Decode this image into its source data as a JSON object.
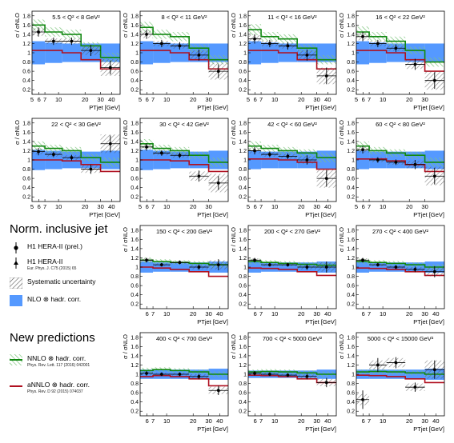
{
  "colors": {
    "nnlo_fill": "#7cc47c",
    "nnlo_line": "#118811",
    "annlo_line": "#b01020",
    "nlo_fill": "#5599ff",
    "syst_hatch": "#555555",
    "data": "#000000"
  },
  "axis_labels": {
    "ylabel": "σ / σNLO",
    "xlabel": "PTjet [GeV]"
  },
  "legend": {
    "title": "Norm. inclusive jet",
    "h1_prel": "H1 HERA-II (prel.)",
    "h1": "H1 HERA-II",
    "h1_ref": "Eur. Phys. J. C75 (2015) 65",
    "syst": "Systematic uncertainty",
    "nlo": "NLO ⊗ hadr. corr.",
    "new_title": "New predictions",
    "nnlo": "NNLO ⊗ hadr. corr.",
    "nnlo_ref": "Phys. Rev. Lett. 117 (2016) 042001",
    "annlo": "aNNLO ⊗ hadr. corr.",
    "annlo_ref": "Phys. Rev. D 92 (2015) 074037"
  },
  "chart_data": [
    {
      "type": "line",
      "title": "5.5 < Q² < 8 GeV²",
      "xedges": [
        5,
        7,
        11,
        18,
        30,
        50
      ],
      "ylim": [
        0.1,
        1.9
      ],
      "yticks": [
        0.2,
        0.4,
        0.6,
        0.8,
        1,
        1.2,
        1.4,
        1.6,
        1.8
      ],
      "xticks": [
        "5",
        "6",
        "7",
        "10",
        "20",
        "30",
        "40"
      ],
      "data": [
        1.45,
        1.25,
        1.25,
        1.05,
        0.68
      ],
      "err": [
        0.1,
        0.08,
        0.08,
        0.12,
        0.15
      ],
      "nnlo": [
        1.6,
        1.45,
        1.4,
        1.15,
        0.9
      ],
      "nnlo_unc": [
        0.12,
        0.1,
        0.1,
        0.08,
        0.1
      ],
      "annlo": [
        1.05,
        1.05,
        1.0,
        0.85,
        0.65
      ],
      "nlo_unc": [
        0.25,
        0.22,
        0.2,
        0.2,
        0.2
      ],
      "syst": [
        0.08,
        0.06,
        0.06,
        0.1,
        0.18
      ]
    },
    {
      "type": "line",
      "title": "8 < Q² < 11 GeV²",
      "xedges": [
        5,
        7,
        11,
        18,
        30,
        50
      ],
      "ylim": [
        0.1,
        1.9
      ],
      "yticks": [
        0.2,
        0.4,
        0.6,
        0.8,
        1,
        1.2,
        1.4,
        1.6,
        1.8
      ],
      "xticks": [
        "5",
        "6",
        "7",
        "10",
        "20",
        "30"
      ],
      "data": [
        1.4,
        1.2,
        1.15,
        0.95,
        0.6
      ],
      "err": [
        0.1,
        0.08,
        0.08,
        0.12,
        0.15
      ],
      "nnlo": [
        1.55,
        1.4,
        1.35,
        1.1,
        0.85
      ],
      "nnlo_unc": [
        0.12,
        0.1,
        0.1,
        0.08,
        0.1
      ],
      "annlo": [
        1.05,
        1.05,
        1.0,
        0.85,
        0.65
      ],
      "nlo_unc": [
        0.25,
        0.22,
        0.2,
        0.2,
        0.2
      ],
      "syst": [
        0.08,
        0.06,
        0.06,
        0.1,
        0.18
      ]
    },
    {
      "type": "line",
      "title": "11 < Q² < 16 GeV²",
      "xedges": [
        5,
        7,
        11,
        18,
        30,
        50
      ],
      "ylim": [
        0.1,
        1.9
      ],
      "yticks": [
        0.2,
        0.4,
        0.6,
        0.8,
        1,
        1.2,
        1.4,
        1.6,
        1.8
      ],
      "xticks": [
        "5",
        "6",
        "7",
        "10",
        "20",
        "30",
        "40"
      ],
      "data": [
        1.3,
        1.2,
        1.15,
        0.95,
        0.5
      ],
      "err": [
        0.1,
        0.08,
        0.08,
        0.12,
        0.18
      ],
      "nnlo": [
        1.5,
        1.35,
        1.3,
        1.1,
        0.85
      ],
      "nnlo_unc": [
        0.12,
        0.1,
        0.1,
        0.08,
        0.1
      ],
      "annlo": [
        1.05,
        1.05,
        1.0,
        0.85,
        0.65
      ],
      "nlo_unc": [
        0.25,
        0.22,
        0.2,
        0.2,
        0.2
      ],
      "syst": [
        0.08,
        0.06,
        0.06,
        0.1,
        0.18
      ]
    },
    {
      "type": "line",
      "title": "16 < Q² < 22 GeV²",
      "xedges": [
        5,
        7,
        11,
        18,
        30,
        50
      ],
      "ylim": [
        0.1,
        1.9
      ],
      "yticks": [
        0.2,
        0.4,
        0.6,
        0.8,
        1,
        1.2,
        1.4,
        1.6,
        1.8
      ],
      "xticks": [
        "5",
        "6",
        "7",
        "10",
        "20",
        "30"
      ],
      "data": [
        1.35,
        1.2,
        1.1,
        0.75,
        0.4
      ],
      "err": [
        0.1,
        0.08,
        0.08,
        0.12,
        0.18
      ],
      "nnlo": [
        1.45,
        1.35,
        1.25,
        1.05,
        0.8
      ],
      "nnlo_unc": [
        0.12,
        0.1,
        0.1,
        0.08,
        0.1
      ],
      "annlo": [
        1.05,
        1.05,
        1.0,
        0.85,
        0.6
      ],
      "nlo_unc": [
        0.25,
        0.22,
        0.2,
        0.2,
        0.2
      ],
      "syst": [
        0.08,
        0.06,
        0.06,
        0.1,
        0.2
      ]
    },
    {
      "type": "line",
      "title": "22 < Q² < 30 GeV²",
      "xedges": [
        5,
        7,
        11,
        18,
        30,
        50
      ],
      "ylim": [
        0.1,
        1.9
      ],
      "yticks": [
        0.2,
        0.4,
        0.6,
        0.8,
        1,
        1.2,
        1.4,
        1.6,
        1.8
      ],
      "xticks": [
        "5",
        "6",
        "7",
        "10",
        "20",
        "30",
        "40"
      ],
      "data": [
        1.18,
        1.12,
        1.05,
        0.8,
        1.35
      ],
      "err": [
        0.08,
        0.06,
        0.06,
        0.1,
        0.18
      ],
      "nnlo": [
        1.3,
        1.25,
        1.2,
        1.05,
        0.95
      ],
      "nnlo_unc": [
        0.1,
        0.08,
        0.08,
        0.08,
        0.1
      ],
      "annlo": [
        1.0,
        1.0,
        0.98,
        0.9,
        0.75
      ],
      "nlo_unc": [
        0.22,
        0.2,
        0.18,
        0.18,
        0.2
      ],
      "syst": [
        0.06,
        0.05,
        0.05,
        0.08,
        0.2
      ]
    },
    {
      "type": "line",
      "title": "30 < Q² < 42 GeV²",
      "xedges": [
        5,
        7,
        11,
        18,
        30,
        50
      ],
      "ylim": [
        0.1,
        1.9
      ],
      "yticks": [
        0.2,
        0.4,
        0.6,
        0.8,
        1,
        1.2,
        1.4,
        1.6,
        1.8
      ],
      "xticks": [
        "5",
        "6",
        "7",
        "10",
        "20",
        "30"
      ],
      "data": [
        1.28,
        1.15,
        1.1,
        0.65,
        0.5
      ],
      "err": [
        0.08,
        0.06,
        0.06,
        0.12,
        0.15
      ],
      "nnlo": [
        1.35,
        1.25,
        1.2,
        1.1,
        0.95
      ],
      "nnlo_unc": [
        0.1,
        0.08,
        0.08,
        0.08,
        0.1
      ],
      "annlo": [
        1.0,
        1.0,
        0.98,
        0.9,
        0.75
      ],
      "nlo_unc": [
        0.22,
        0.2,
        0.18,
        0.18,
        0.2
      ],
      "syst": [
        0.06,
        0.05,
        0.05,
        0.1,
        0.2
      ]
    },
    {
      "type": "line",
      "title": "42 < Q² < 60 GeV²",
      "xedges": [
        5,
        7,
        11,
        18,
        30,
        50
      ],
      "ylim": [
        0.1,
        1.9
      ],
      "yticks": [
        0.2,
        0.4,
        0.6,
        0.8,
        1,
        1.2,
        1.4,
        1.6,
        1.8
      ],
      "xticks": [
        "5",
        "6",
        "7",
        "10",
        "20",
        "30",
        "40"
      ],
      "data": [
        1.2,
        1.12,
        1.08,
        1.0,
        0.6
      ],
      "err": [
        0.08,
        0.06,
        0.06,
        0.1,
        0.18
      ],
      "nnlo": [
        1.3,
        1.25,
        1.2,
        1.15,
        1.05
      ],
      "nnlo_unc": [
        0.1,
        0.08,
        0.08,
        0.08,
        0.1
      ],
      "annlo": [
        1.02,
        1.02,
        1.0,
        0.95,
        0.8
      ],
      "nlo_unc": [
        0.2,
        0.18,
        0.18,
        0.18,
        0.2
      ],
      "syst": [
        0.06,
        0.05,
        0.05,
        0.08,
        0.2
      ]
    },
    {
      "type": "line",
      "title": "60 < Q² < 80 GeV²",
      "xedges": [
        5,
        7,
        11,
        18,
        30,
        50
      ],
      "ylim": [
        0.1,
        1.9
      ],
      "yticks": [
        0.2,
        0.4,
        0.6,
        0.8,
        1,
        1.2,
        1.4,
        1.6,
        1.8
      ],
      "xticks": [
        "5",
        "6",
        "7",
        "10",
        "20",
        "30"
      ],
      "data": [
        1.22,
        1.0,
        0.95,
        0.9,
        0.65
      ],
      "err": [
        0.08,
        0.06,
        0.06,
        0.1,
        0.18
      ],
      "nnlo": [
        1.3,
        1.2,
        1.15,
        1.1,
        0.95
      ],
      "nnlo_unc": [
        0.1,
        0.08,
        0.08,
        0.08,
        0.1
      ],
      "annlo": [
        1.02,
        1.02,
        0.98,
        0.9,
        0.75
      ],
      "nlo_unc": [
        0.2,
        0.18,
        0.18,
        0.18,
        0.2
      ],
      "syst": [
        0.06,
        0.05,
        0.05,
        0.08,
        0.2
      ]
    },
    {
      "type": "line",
      "title": "150 < Q² < 200 GeV²",
      "xedges": [
        5,
        7,
        11,
        18,
        30,
        50
      ],
      "ylim": [
        0.1,
        1.9
      ],
      "yticks": [
        0.2,
        0.4,
        0.6,
        0.8,
        1,
        1.2,
        1.4,
        1.6,
        1.8
      ],
      "xticks": [
        "6",
        "7",
        "10",
        "20",
        "30",
        "40"
      ],
      "data": [
        1.15,
        1.05,
        1.1,
        1.0,
        1.05
      ],
      "err": [
        0.05,
        0.04,
        0.04,
        0.06,
        0.12
      ],
      "nnlo": [
        1.15,
        1.12,
        1.1,
        1.08,
        1.05
      ],
      "nnlo_unc": [
        0.06,
        0.05,
        0.05,
        0.05,
        0.06
      ],
      "annlo": [
        1.0,
        0.98,
        0.95,
        0.9,
        0.8
      ],
      "nlo_unc": [
        0.12,
        0.1,
        0.1,
        0.1,
        0.12
      ],
      "syst": [
        0.04,
        0.03,
        0.03,
        0.05,
        0.1
      ]
    },
    {
      "type": "line",
      "title": "200 < Q² < 270 GeV²",
      "xedges": [
        5,
        7,
        11,
        18,
        30,
        50
      ],
      "ylim": [
        0.1,
        1.9
      ],
      "yticks": [
        0.2,
        0.4,
        0.6,
        0.8,
        1,
        1.2,
        1.4,
        1.6,
        1.8
      ],
      "xticks": [
        "6",
        "7",
        "10",
        "20",
        "30",
        "40"
      ],
      "data": [
        1.15,
        1.05,
        1.05,
        1.0,
        1.0
      ],
      "err": [
        0.05,
        0.04,
        0.04,
        0.06,
        0.12
      ],
      "nnlo": [
        1.12,
        1.1,
        1.08,
        1.06,
        1.04
      ],
      "nnlo_unc": [
        0.06,
        0.05,
        0.05,
        0.05,
        0.06
      ],
      "annlo": [
        0.98,
        0.97,
        0.95,
        0.9,
        0.82
      ],
      "nlo_unc": [
        0.12,
        0.1,
        0.1,
        0.1,
        0.12
      ],
      "syst": [
        0.04,
        0.03,
        0.03,
        0.05,
        0.1
      ]
    },
    {
      "type": "line",
      "title": "270 < Q² < 400 GeV²",
      "xedges": [
        5,
        7,
        11,
        18,
        30,
        50
      ],
      "ylim": [
        0.1,
        1.9
      ],
      "yticks": [
        0.2,
        0.4,
        0.6,
        0.8,
        1,
        1.2,
        1.4,
        1.6,
        1.8
      ],
      "xticks": [
        "6",
        "7",
        "10",
        "20",
        "30",
        "40"
      ],
      "data": [
        1.15,
        1.05,
        1.0,
        0.95,
        0.9
      ],
      "err": [
        0.05,
        0.04,
        0.04,
        0.06,
        0.12
      ],
      "nnlo": [
        1.12,
        1.1,
        1.08,
        1.05,
        1.0
      ],
      "nnlo_unc": [
        0.06,
        0.05,
        0.05,
        0.05,
        0.06
      ],
      "annlo": [
        0.98,
        0.97,
        0.95,
        0.9,
        0.82
      ],
      "nlo_unc": [
        0.12,
        0.1,
        0.1,
        0.1,
        0.12
      ],
      "syst": [
        0.04,
        0.03,
        0.03,
        0.05,
        0.1
      ]
    },
    {
      "type": "line",
      "title": "400 < Q² < 700 GeV²",
      "xedges": [
        5,
        7,
        11,
        18,
        30,
        50
      ],
      "ylim": [
        0.1,
        1.9
      ],
      "yticks": [
        0.2,
        0.4,
        0.6,
        0.8,
        1,
        1.2,
        1.4,
        1.6,
        1.8
      ],
      "xticks": [
        "6",
        "7",
        "10",
        "20",
        "30",
        "40"
      ],
      "data": [
        1.02,
        1.0,
        1.0,
        0.95,
        0.65
      ],
      "err": [
        0.05,
        0.04,
        0.04,
        0.06,
        0.1
      ],
      "nnlo": [
        1.08,
        1.1,
        1.08,
        1.05,
        1.0
      ],
      "nnlo_unc": [
        0.06,
        0.05,
        0.05,
        0.05,
        0.06
      ],
      "annlo": [
        0.95,
        0.97,
        0.95,
        0.9,
        0.75
      ],
      "nlo_unc": [
        0.1,
        0.1,
        0.1,
        0.1,
        0.12
      ],
      "syst": [
        0.04,
        0.03,
        0.03,
        0.05,
        0.08
      ]
    },
    {
      "type": "line",
      "title": "700 < Q² < 5000 GeV²",
      "xedges": [
        5,
        7,
        11,
        18,
        30,
        50
      ],
      "ylim": [
        0.1,
        1.9
      ],
      "yticks": [
        0.2,
        0.4,
        0.6,
        0.8,
        1,
        1.2,
        1.4,
        1.6,
        1.8
      ],
      "xticks": [
        "6",
        "7",
        "10",
        "20",
        "30",
        "40"
      ],
      "data": [
        1.02,
        1.0,
        0.98,
        0.95,
        0.82
      ],
      "err": [
        0.05,
        0.04,
        0.04,
        0.06,
        0.1
      ],
      "nnlo": [
        1.05,
        1.06,
        1.05,
        1.03,
        1.0
      ],
      "nnlo_unc": [
        0.05,
        0.05,
        0.05,
        0.05,
        0.06
      ],
      "annlo": [
        0.98,
        0.97,
        0.95,
        0.9,
        0.82
      ],
      "nlo_unc": [
        0.08,
        0.08,
        0.08,
        0.08,
        0.1
      ],
      "syst": [
        0.03,
        0.03,
        0.03,
        0.04,
        0.08
      ]
    },
    {
      "type": "line",
      "title": "5000 < Q² < 15000 GeV²",
      "xedges": [
        5,
        7,
        11,
        18,
        30,
        50
      ],
      "ylim": [
        0.1,
        1.9
      ],
      "yticks": [
        0.2,
        0.4,
        0.6,
        0.8,
        1,
        1.2,
        1.4,
        1.6,
        1.8
      ],
      "xticks": [
        "6",
        "7",
        "10",
        "20",
        "30",
        "40"
      ],
      "data": [
        0.45,
        1.2,
        1.25,
        0.72,
        1.1
      ],
      "err": [
        0.2,
        0.15,
        0.12,
        0.1,
        0.2
      ],
      "nnlo": [
        1.05,
        1.06,
        1.05,
        1.03,
        1.0
      ],
      "nnlo_unc": [
        0.05,
        0.05,
        0.05,
        0.05,
        0.06
      ],
      "annlo": [
        0.98,
        0.97,
        0.95,
        0.9,
        0.82
      ],
      "nlo_unc": [
        0.1,
        0.1,
        0.1,
        0.1,
        0.12
      ],
      "syst": [
        0.12,
        0.1,
        0.1,
        0.08,
        0.2
      ]
    }
  ]
}
